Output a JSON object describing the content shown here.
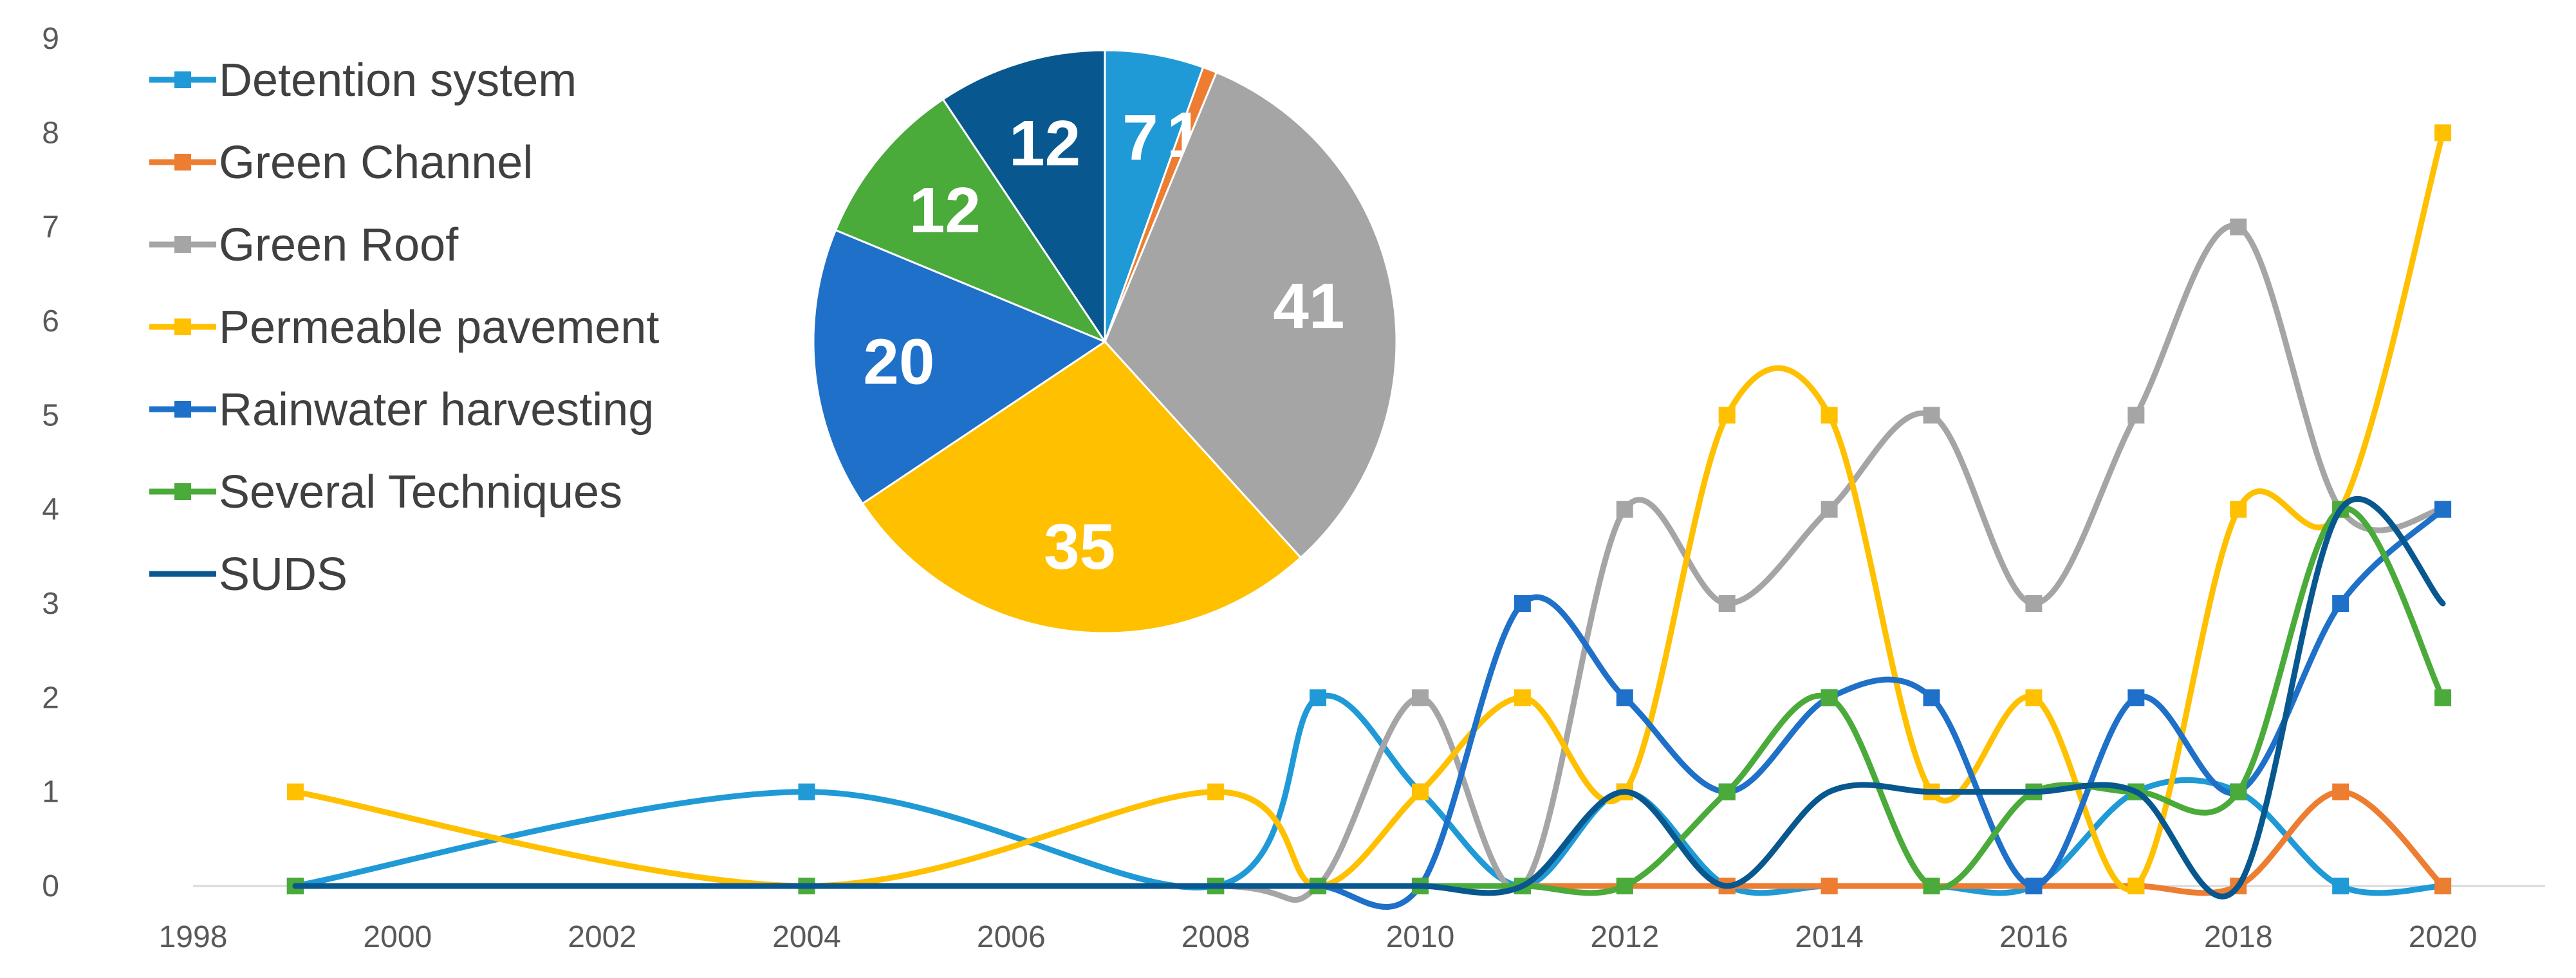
{
  "chart_data": [
    {
      "type": "line",
      "smooth": true,
      "x_axis": {
        "min": 1998,
        "max": 2021,
        "tick_step": 2,
        "ticks": [
          "1998",
          "2000",
          "2002",
          "2004",
          "2006",
          "2008",
          "2010",
          "2012",
          "2014",
          "2016",
          "2018",
          "2020"
        ]
      },
      "y_axis": {
        "min": 0,
        "max": 9,
        "ticks": [
          "0",
          "1",
          "2",
          "3",
          "4",
          "5",
          "6",
          "7",
          "8",
          "9"
        ]
      },
      "grid": false,
      "legend_position": "top-left",
      "series": [
        {
          "name": "Detention system",
          "color": "#1f9ad6",
          "marker": "square",
          "points": [
            [
              1999,
              0
            ],
            [
              2004,
              1
            ],
            [
              2008,
              0
            ],
            [
              2009,
              2
            ],
            [
              2010,
              1
            ],
            [
              2011,
              0
            ],
            [
              2012,
              1
            ],
            [
              2013,
              0
            ],
            [
              2014,
              0
            ],
            [
              2015,
              0
            ],
            [
              2016,
              0
            ],
            [
              2017,
              1
            ],
            [
              2018,
              1
            ],
            [
              2019,
              0
            ],
            [
              2020,
              0
            ]
          ]
        },
        {
          "name": "Green Channel",
          "color": "#ed7d31",
          "marker": "square",
          "points": [
            [
              1999,
              0
            ],
            [
              2004,
              0
            ],
            [
              2008,
              0
            ],
            [
              2009,
              0
            ],
            [
              2010,
              0
            ],
            [
              2011,
              0
            ],
            [
              2012,
              0
            ],
            [
              2013,
              0
            ],
            [
              2014,
              0
            ],
            [
              2015,
              0
            ],
            [
              2016,
              0
            ],
            [
              2017,
              0
            ],
            [
              2018,
              0
            ],
            [
              2019,
              1
            ],
            [
              2020,
              0
            ]
          ]
        },
        {
          "name": "Green Roof",
          "color": "#a5a5a5",
          "marker": "square",
          "points": [
            [
              1999,
              0
            ],
            [
              2004,
              0
            ],
            [
              2008,
              0
            ],
            [
              2009,
              0
            ],
            [
              2010,
              2
            ],
            [
              2011,
              0
            ],
            [
              2012,
              4
            ],
            [
              2013,
              3
            ],
            [
              2014,
              4
            ],
            [
              2015,
              5
            ],
            [
              2016,
              3
            ],
            [
              2017,
              5
            ],
            [
              2018,
              7
            ],
            [
              2019,
              4
            ],
            [
              2020,
              4
            ]
          ]
        },
        {
          "name": "Permeable pavement",
          "color": "#ffc000",
          "marker": "square",
          "points": [
            [
              1999,
              1
            ],
            [
              2004,
              0
            ],
            [
              2008,
              1
            ],
            [
              2009,
              0
            ],
            [
              2010,
              1
            ],
            [
              2011,
              2
            ],
            [
              2012,
              1
            ],
            [
              2013,
              5
            ],
            [
              2014,
              5
            ],
            [
              2015,
              1
            ],
            [
              2016,
              2
            ],
            [
              2017,
              0
            ],
            [
              2018,
              4
            ],
            [
              2019,
              4
            ],
            [
              2020,
              8
            ]
          ]
        },
        {
          "name": "Rainwater harvesting",
          "color": "#1e70c8",
          "marker": "square",
          "points": [
            [
              1999,
              0
            ],
            [
              2004,
              0
            ],
            [
              2008,
              0
            ],
            [
              2009,
              0
            ],
            [
              2010,
              0
            ],
            [
              2011,
              3
            ],
            [
              2012,
              2
            ],
            [
              2013,
              1
            ],
            [
              2014,
              2
            ],
            [
              2015,
              2
            ],
            [
              2016,
              0
            ],
            [
              2017,
              2
            ],
            [
              2018,
              1
            ],
            [
              2019,
              3
            ],
            [
              2020,
              4
            ]
          ]
        },
        {
          "name": "Several Techniques",
          "color": "#4aaa3a",
          "marker": "square",
          "points": [
            [
              1999,
              0
            ],
            [
              2004,
              0
            ],
            [
              2008,
              0
            ],
            [
              2009,
              0
            ],
            [
              2010,
              0
            ],
            [
              2011,
              0
            ],
            [
              2012,
              0
            ],
            [
              2013,
              1
            ],
            [
              2014,
              2
            ],
            [
              2015,
              0
            ],
            [
              2016,
              1
            ],
            [
              2017,
              1
            ],
            [
              2018,
              1
            ],
            [
              2019,
              4
            ],
            [
              2020,
              2
            ]
          ]
        },
        {
          "name": "SUDS",
          "color": "#08588f",
          "marker": "none",
          "points": [
            [
              1999,
              0
            ],
            [
              2004,
              0
            ],
            [
              2008,
              0
            ],
            [
              2009,
              0
            ],
            [
              2010,
              0
            ],
            [
              2011,
              0
            ],
            [
              2012,
              1
            ],
            [
              2013,
              0
            ],
            [
              2014,
              1
            ],
            [
              2015,
              1
            ],
            [
              2016,
              1
            ],
            [
              2017,
              1
            ],
            [
              2018,
              0
            ],
            [
              2019,
              4
            ],
            [
              2020,
              3
            ]
          ]
        }
      ]
    },
    {
      "type": "pie",
      "start_angle_deg": 0,
      "direction": "clockwise",
      "slices": [
        {
          "label": "7",
          "value": 7,
          "color": "#1f9ad6"
        },
        {
          "label": "1",
          "value": 1,
          "color": "#ed7d31"
        },
        {
          "label": "41",
          "value": 41,
          "color": "#a5a5a5"
        },
        {
          "label": "35",
          "value": 35,
          "color": "#ffc000"
        },
        {
          "label": "20",
          "value": 20,
          "color": "#1e70c8"
        },
        {
          "label": "12",
          "value": 12,
          "color": "#4aaa3a"
        },
        {
          "label": "12",
          "value": 12,
          "color": "#08588f"
        }
      ]
    }
  ]
}
